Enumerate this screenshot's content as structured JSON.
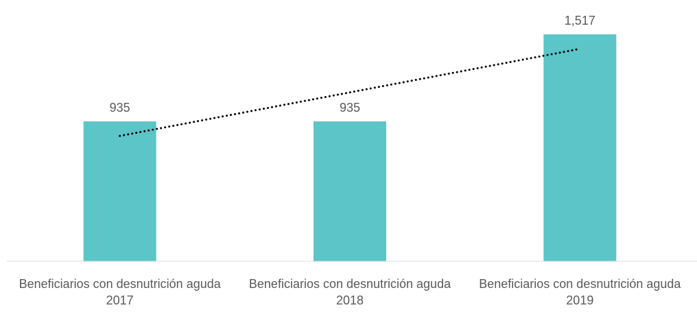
{
  "chart_data": {
    "type": "bar",
    "categories": [
      "Beneficiarios con desnutrición aguda 2017",
      "Beneficiarios con desnutrición aguda 2018",
      "Beneficiarios con desnutrición aguda 2019"
    ],
    "values": [
      935,
      935,
      1517
    ],
    "value_labels": [
      "935",
      "935",
      "1,517"
    ],
    "color": "#5bc5c8",
    "ylim": [
      0,
      1600
    ],
    "grid": false,
    "trendline": {
      "type": "linear",
      "style": "dotted",
      "color": "#000000"
    }
  }
}
